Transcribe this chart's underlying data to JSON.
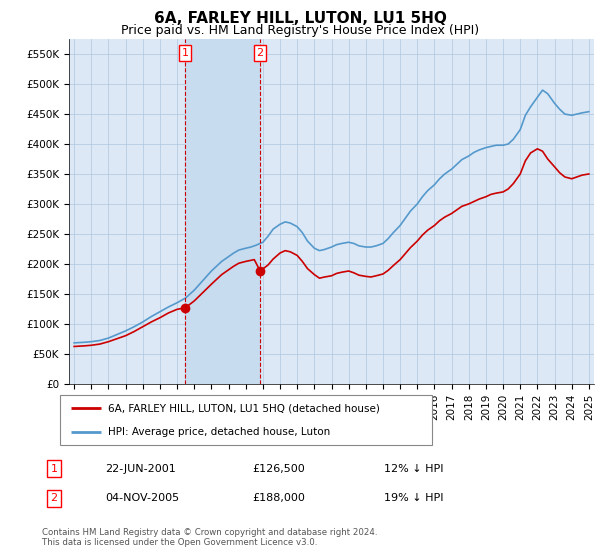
{
  "title": "6A, FARLEY HILL, LUTON, LU1 5HQ",
  "subtitle": "Price paid vs. HM Land Registry's House Price Index (HPI)",
  "ylabel_ticks": [
    "£0",
    "£50K",
    "£100K",
    "£150K",
    "£200K",
    "£250K",
    "£300K",
    "£350K",
    "£400K",
    "£450K",
    "£500K",
    "£550K"
  ],
  "ytick_vals": [
    0,
    50000,
    100000,
    150000,
    200000,
    250000,
    300000,
    350000,
    400000,
    450000,
    500000,
    550000
  ],
  "ylim": [
    0,
    575000
  ],
  "xlim_start": 1994.7,
  "xlim_end": 2025.3,
  "bg_color": "#dce8f5",
  "shade_color": "#c8dcf0",
  "grid_color": "#b0c8e0",
  "line_red_color": "#cc0000",
  "line_blue_color": "#5599cc",
  "sale1_x": 2001.47,
  "sale1_y": 126500,
  "sale1_label": "1",
  "sale2_x": 2005.84,
  "sale2_y": 188000,
  "sale2_label": "2",
  "legend_line1": "6A, FARLEY HILL, LUTON, LU1 5HQ (detached house)",
  "legend_line2": "HPI: Average price, detached house, Luton",
  "table_row1": [
    "1",
    "22-JUN-2001",
    "£126,500",
    "12% ↓ HPI"
  ],
  "table_row2": [
    "2",
    "04-NOV-2005",
    "£188,000",
    "19% ↓ HPI"
  ],
  "footer": "Contains HM Land Registry data © Crown copyright and database right 2024.\nThis data is licensed under the Open Government Licence v3.0.",
  "title_fontsize": 11,
  "subtitle_fontsize": 9,
  "tick_fontsize": 7.5,
  "hpi_x": [
    1995.0,
    1995.3,
    1995.6,
    1996.0,
    1996.5,
    1997.0,
    1997.5,
    1998.0,
    1998.5,
    1999.0,
    1999.5,
    2000.0,
    2000.5,
    2001.0,
    2001.5,
    2002.0,
    2002.5,
    2003.0,
    2003.3,
    2003.6,
    2004.0,
    2004.3,
    2004.6,
    2005.0,
    2005.3,
    2005.6,
    2006.0,
    2006.3,
    2006.6,
    2007.0,
    2007.3,
    2007.6,
    2008.0,
    2008.3,
    2008.6,
    2009.0,
    2009.3,
    2009.6,
    2010.0,
    2010.3,
    2010.6,
    2011.0,
    2011.3,
    2011.6,
    2012.0,
    2012.3,
    2012.6,
    2013.0,
    2013.3,
    2013.6,
    2014.0,
    2014.3,
    2014.6,
    2015.0,
    2015.3,
    2015.6,
    2016.0,
    2016.3,
    2016.6,
    2017.0,
    2017.3,
    2017.6,
    2018.0,
    2018.3,
    2018.6,
    2019.0,
    2019.3,
    2019.6,
    2020.0,
    2020.3,
    2020.6,
    2021.0,
    2021.3,
    2021.6,
    2022.0,
    2022.3,
    2022.6,
    2023.0,
    2023.3,
    2023.6,
    2024.0,
    2024.3,
    2024.6,
    2025.0
  ],
  "hpi_y": [
    68000,
    68500,
    69000,
    70000,
    72000,
    76000,
    82000,
    88000,
    95000,
    103000,
    112000,
    120000,
    128000,
    135000,
    143000,
    156000,
    172000,
    188000,
    196000,
    204000,
    212000,
    218000,
    223000,
    226000,
    228000,
    231000,
    236000,
    246000,
    258000,
    266000,
    270000,
    268000,
    262000,
    252000,
    238000,
    226000,
    222000,
    224000,
    228000,
    232000,
    234000,
    236000,
    234000,
    230000,
    228000,
    228000,
    230000,
    234000,
    242000,
    252000,
    264000,
    276000,
    288000,
    300000,
    312000,
    322000,
    332000,
    342000,
    350000,
    358000,
    366000,
    374000,
    380000,
    386000,
    390000,
    394000,
    396000,
    398000,
    398000,
    400000,
    408000,
    424000,
    448000,
    462000,
    478000,
    490000,
    484000,
    468000,
    458000,
    450000,
    448000,
    450000,
    452000,
    454000
  ],
  "red_x": [
    1995.0,
    1995.3,
    1995.6,
    1996.0,
    1996.5,
    1997.0,
    1997.5,
    1998.0,
    1998.5,
    1999.0,
    1999.5,
    2000.0,
    2000.5,
    2001.0,
    2001.47,
    2002.0,
    2002.5,
    2003.0,
    2003.3,
    2003.6,
    2004.0,
    2004.3,
    2004.6,
    2005.0,
    2005.5,
    2005.84,
    2006.3,
    2006.6,
    2007.0,
    2007.3,
    2007.6,
    2008.0,
    2008.3,
    2008.6,
    2009.0,
    2009.3,
    2009.6,
    2010.0,
    2010.3,
    2010.6,
    2011.0,
    2011.3,
    2011.6,
    2012.0,
    2012.3,
    2012.6,
    2013.0,
    2013.3,
    2013.6,
    2014.0,
    2014.3,
    2014.6,
    2015.0,
    2015.3,
    2015.6,
    2016.0,
    2016.3,
    2016.6,
    2017.0,
    2017.3,
    2017.6,
    2018.0,
    2018.3,
    2018.6,
    2019.0,
    2019.3,
    2019.6,
    2020.0,
    2020.3,
    2020.6,
    2021.0,
    2021.3,
    2021.6,
    2022.0,
    2022.3,
    2022.6,
    2023.0,
    2023.3,
    2023.6,
    2024.0,
    2024.3,
    2024.6,
    2025.0
  ],
  "red_y": [
    62000,
    62500,
    63000,
    64000,
    66000,
    70000,
    75000,
    80000,
    87000,
    95000,
    103000,
    110000,
    118000,
    124000,
    126500,
    138000,
    152000,
    166000,
    174000,
    182000,
    190000,
    196000,
    201000,
    204000,
    207000,
    188000,
    198000,
    208000,
    218000,
    222000,
    220000,
    214000,
    204000,
    192000,
    182000,
    176000,
    178000,
    180000,
    184000,
    186000,
    188000,
    185000,
    181000,
    179000,
    178000,
    180000,
    183000,
    189000,
    197000,
    207000,
    217000,
    227000,
    238000,
    248000,
    256000,
    264000,
    272000,
    278000,
    284000,
    290000,
    296000,
    300000,
    304000,
    308000,
    312000,
    316000,
    318000,
    320000,
    325000,
    334000,
    350000,
    372000,
    385000,
    392000,
    388000,
    375000,
    362000,
    352000,
    345000,
    342000,
    345000,
    348000,
    350000
  ]
}
